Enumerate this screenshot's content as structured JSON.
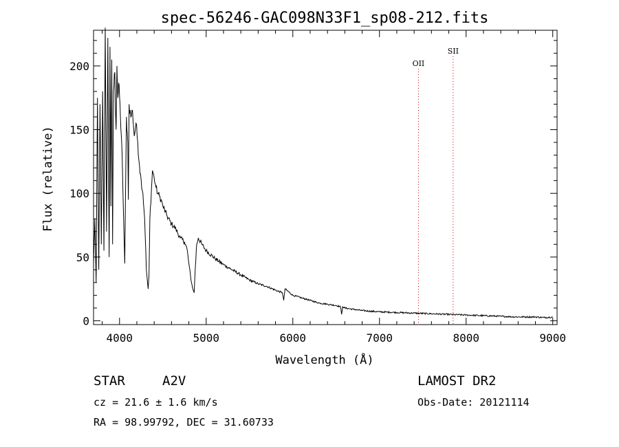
{
  "chart_data": {
    "type": "line",
    "title": "spec-56246-GAC098N33F1_sp08-212.fits",
    "xlabel": "Wavelength (Å)",
    "ylabel": "Flux (relative)",
    "xlim": [
      3700,
      9050
    ],
    "ylim": [
      -3,
      228
    ],
    "x_ticks": [
      4000,
      5000,
      6000,
      7000,
      8000,
      9000
    ],
    "x_tick_labels": [
      "4000",
      "5000",
      "6000",
      "7000",
      "8000",
      "9000"
    ],
    "y_ticks": [
      0,
      50,
      100,
      150,
      200
    ],
    "y_tick_labels": [
      "0",
      "50",
      "100",
      "150",
      "200"
    ],
    "series": [
      {
        "name": "spectrum",
        "color": "#000000",
        "x": [
          3700,
          3715,
          3730,
          3745,
          3760,
          3775,
          3790,
          3805,
          3820,
          3835,
          3850,
          3865,
          3880,
          3890,
          3900,
          3910,
          3920,
          3930,
          3945,
          3960,
          3970,
          3980,
          3995,
          4010,
          4025,
          4040,
          4060,
          4080,
          4095,
          4102,
          4110,
          4130,
          4150,
          4170,
          4190,
          4210,
          4230,
          4250,
          4270,
          4290,
          4310,
          4330,
          4340,
          4350,
          4380,
          4400,
          4420,
          4440,
          4460,
          4480,
          4500,
          4550,
          4600,
          4650,
          4700,
          4750,
          4780,
          4800,
          4830,
          4850,
          4861,
          4875,
          4890,
          4910,
          4950,
          5000,
          5100,
          5200,
          5300,
          5400,
          5500,
          5600,
          5700,
          5800,
          5880,
          5895,
          5910,
          6000,
          6100,
          6200,
          6300,
          6400,
          6500,
          6550,
          6563,
          6575,
          6600,
          6700,
          6800,
          6900,
          7000,
          7200,
          7400,
          7600,
          7800,
          8000,
          8200,
          8400,
          8500,
          8600,
          8700,
          8800,
          8900,
          9000
        ],
        "y": [
          45,
          80,
          30,
          175,
          40,
          170,
          60,
          180,
          55,
          230,
          70,
          222,
          50,
          215,
          90,
          205,
          60,
          180,
          195,
          150,
          200,
          175,
          185,
          160,
          140,
          100,
          45,
          160,
          140,
          95,
          170,
          160,
          165,
          145,
          155,
          140,
          122,
          110,
          100,
          80,
          40,
          25,
          35,
          80,
          118,
          112,
          105,
          100,
          98,
          95,
          90,
          82,
          76,
          72,
          65,
          62,
          56,
          45,
          30,
          24,
          22,
          42,
          60,
          65,
          60,
          55,
          49,
          44,
          40,
          36,
          32,
          29,
          27,
          24,
          22,
          16,
          25,
          20,
          18,
          16,
          14,
          13,
          12,
          11,
          5,
          11,
          10,
          9,
          8,
          7.5,
          7,
          6.5,
          6,
          5.5,
          5,
          4.5,
          4,
          3.5,
          3.2,
          3,
          3,
          3,
          2.5,
          3
        ]
      }
    ],
    "emission_lines": [
      {
        "label": "OII",
        "wavelength": 7450,
        "color": "#cc0000"
      },
      {
        "label": "SII",
        "wavelength": 7850,
        "color": "#cc0000"
      }
    ]
  },
  "info": {
    "object_type": "STAR",
    "subclass": "A2V",
    "cz": "cz = 21.6 ± 1.6 km/s",
    "coords": "RA =  98.99792, DEC =  31.60733",
    "survey": "LAMOST DR2",
    "obs_date": "Obs-Date: 20121114"
  }
}
